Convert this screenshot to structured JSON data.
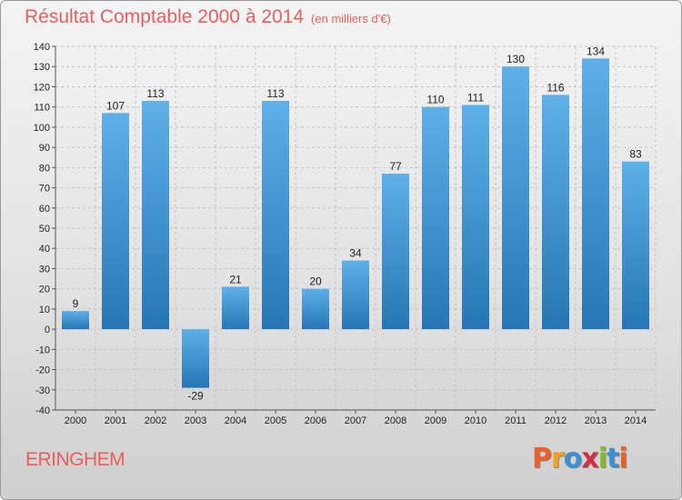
{
  "header": {
    "title": "Résultat Comptable 2000 à 2014",
    "subtitle": "(en milliers d'€)"
  },
  "footer": {
    "commune": "ERINGHEM",
    "brand": "Proxiti"
  },
  "colors": {
    "title": "#e8605a",
    "bar_light": "#5eb0e8",
    "bar_dark": "#2676b4",
    "brand_letters": [
      "#e8602a",
      "#f0a020",
      "#3c8fd0",
      "#d03040",
      "#86b828",
      "#3c8fd0",
      "#e8602a"
    ]
  },
  "chart_data": {
    "type": "bar",
    "title": "Résultat Comptable 2000 à 2014",
    "subtitle": "(en milliers d'€)",
    "categories": [
      "2000",
      "2001",
      "2002",
      "2003",
      "2004",
      "2005",
      "2006",
      "2007",
      "2008",
      "2009",
      "2010",
      "2011",
      "2012",
      "2013",
      "2014"
    ],
    "values": [
      9,
      107,
      113,
      -29,
      21,
      113,
      20,
      34,
      77,
      110,
      111,
      130,
      116,
      134,
      83
    ],
    "ylim": [
      -40,
      140
    ],
    "yticks": [
      -40,
      -30,
      -20,
      -10,
      0,
      10,
      20,
      30,
      40,
      50,
      60,
      70,
      80,
      90,
      100,
      110,
      120,
      130,
      140
    ],
    "grid": true,
    "xlabel": "",
    "ylabel": ""
  }
}
